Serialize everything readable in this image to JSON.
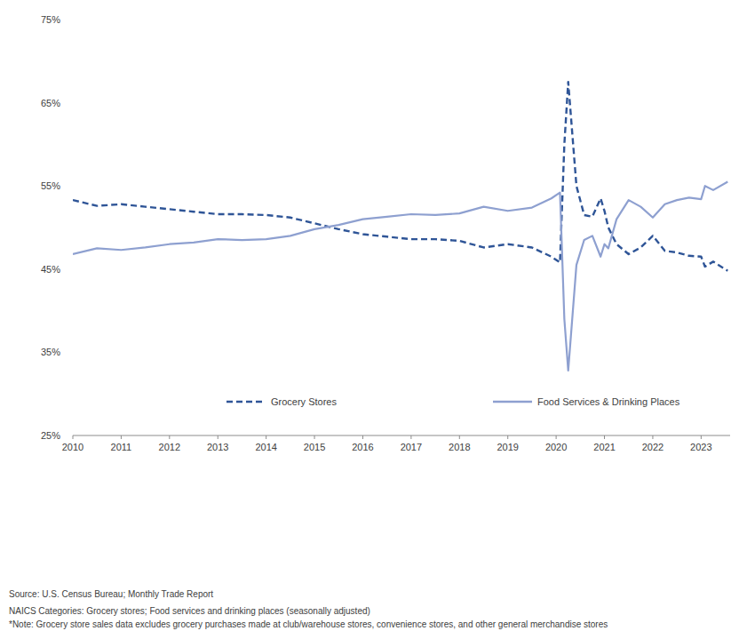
{
  "chart_data": {
    "type": "line",
    "x": [
      2010,
      2010.5,
      2011,
      2011.5,
      2012,
      2012.5,
      2013,
      2013.5,
      2014,
      2014.5,
      2015,
      2015.5,
      2016,
      2016.5,
      2017,
      2017.5,
      2018,
      2018.5,
      2019,
      2019.5,
      2019.9,
      2020.08,
      2020.17,
      2020.25,
      2020.42,
      2020.58,
      2020.75,
      2020.92,
      2021.0,
      2021.08,
      2021.25,
      2021.5,
      2021.75,
      2022.0,
      2022.25,
      2022.5,
      2022.75,
      2023.0,
      2023.08,
      2023.25,
      2023.55
    ],
    "series": [
      {
        "name": "Grocery Stores",
        "color": "#2f5597",
        "line_style": "dashed",
        "values": [
          53.3,
          52.6,
          52.8,
          52.5,
          52.2,
          51.9,
          51.6,
          51.6,
          51.5,
          51.2,
          50.5,
          49.8,
          49.2,
          48.9,
          48.6,
          48.6,
          48.4,
          47.6,
          48.0,
          47.6,
          46.5,
          45.8,
          60.0,
          67.5,
          55.0,
          51.5,
          51.3,
          53.5,
          52.0,
          50.0,
          48.0,
          46.8,
          47.6,
          49.0,
          47.2,
          47.0,
          46.6,
          46.5,
          45.3,
          45.9,
          44.8
        ]
      },
      {
        "name": "Food Services & Drinking Places",
        "color": "#8ea0d0",
        "line_style": "solid",
        "values": [
          46.8,
          47.5,
          47.3,
          47.6,
          48.0,
          48.2,
          48.6,
          48.5,
          48.6,
          49.0,
          49.8,
          50.3,
          51.0,
          51.3,
          51.6,
          51.5,
          51.7,
          52.5,
          52.0,
          52.4,
          53.5,
          54.2,
          39.0,
          32.8,
          45.5,
          48.5,
          49.0,
          46.5,
          48.0,
          47.5,
          51.0,
          53.3,
          52.5,
          51.2,
          52.8,
          53.3,
          53.6,
          53.4,
          55.0,
          54.5,
          55.5
        ]
      }
    ],
    "xlim": [
      2010,
      2023.6
    ],
    "xticks": [
      2010,
      2011,
      2012,
      2013,
      2014,
      2015,
      2016,
      2017,
      2018,
      2019,
      2020,
      2021,
      2022,
      2023
    ],
    "ylim": [
      25,
      75
    ],
    "yticks": [
      {
        "value": 25,
        "label": "25%"
      },
      {
        "value": 35,
        "label": "35%"
      },
      {
        "value": 45,
        "label": "45%"
      },
      {
        "value": 55,
        "label": "55%"
      },
      {
        "value": 65,
        "label": "65%"
      },
      {
        "value": 75,
        "label": "75%"
      }
    ],
    "grid": false,
    "legend": "bottom",
    "annotations": [
      "Source: U.S. Census Bureau; Monthly Trade Report",
      "NAICS Categories: Grocery stores; Food services and drinking places (seasonally adjusted)",
      "*Note: Grocery store sales data excludes grocery purchases made at club/warehouse stores, convenience stores, and other general merchandise stores"
    ]
  }
}
